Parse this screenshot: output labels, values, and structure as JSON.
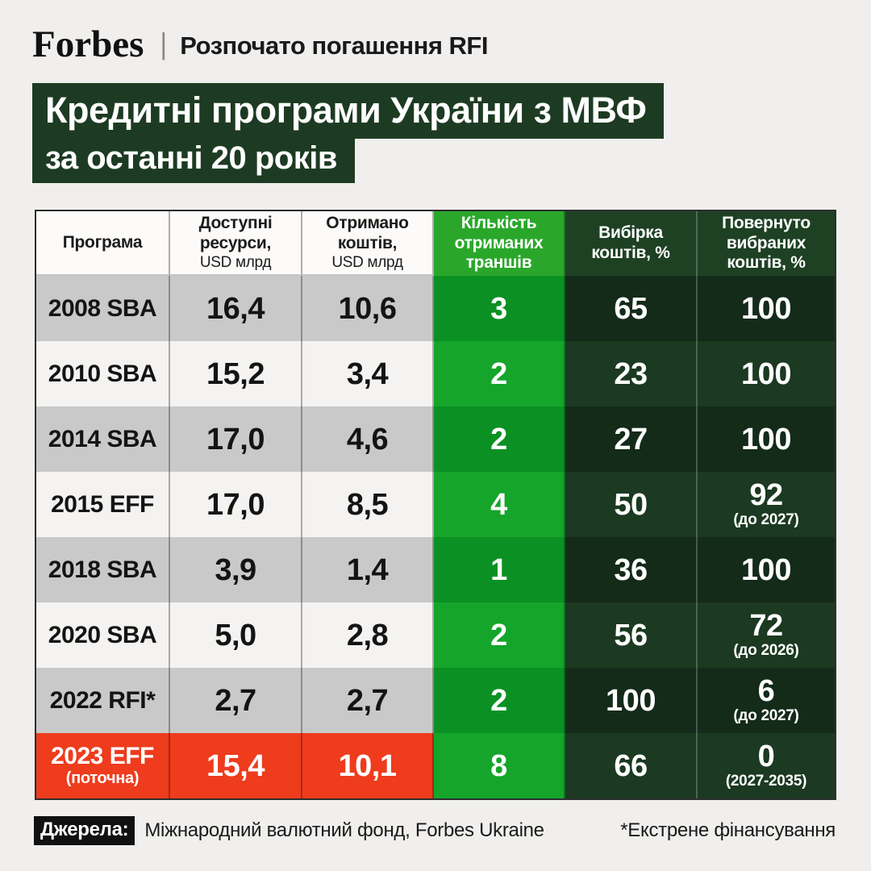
{
  "masthead": {
    "brand": "Forbes",
    "divider": "|",
    "tagline": "Розпочато погашення RFI"
  },
  "title": {
    "line1": "Кредитні програми України з МВФ",
    "line2": "за останні 20 років"
  },
  "colors": {
    "page_bg": "#f0efed",
    "title_bg": "#1d3b22",
    "bright_green_header": "#2aa72b",
    "bright_green_row_odd": "#0b9123",
    "bright_green_row_even": "#14a52a",
    "dark_green_header": "#1e4124",
    "dark_green_row_odd": "#132b18",
    "dark_green_row_even": "#1b3a21",
    "gray_row": "#c9c9c9",
    "light_row": "#f4f3f1",
    "red_row": "#ee3c1d"
  },
  "table": {
    "columns": [
      {
        "label": "Програма",
        "sub": ""
      },
      {
        "label": "Доступні\nресурси,",
        "sub": "USD млрд"
      },
      {
        "label": "Отримано\nкоштів,",
        "sub": "USD млрд"
      },
      {
        "label": "Кількість\nотриманих\nтраншів",
        "sub": ""
      },
      {
        "label": "Вибірка\nкоштів, %",
        "sub": ""
      },
      {
        "label": "Повернуто\nвибраних\nкоштів, %",
        "sub": ""
      }
    ],
    "rows": [
      {
        "program": "2008 SBA",
        "program_note": "",
        "available": "16,4",
        "received": "10,6",
        "tranches": "3",
        "disbursed": "65",
        "repaid": "100",
        "repaid_note": ""
      },
      {
        "program": "2010 SBA",
        "program_note": "",
        "available": "15,2",
        "received": "3,4",
        "tranches": "2",
        "disbursed": "23",
        "repaid": "100",
        "repaid_note": ""
      },
      {
        "program": "2014 SBA",
        "program_note": "",
        "available": "17,0",
        "received": "4,6",
        "tranches": "2",
        "disbursed": "27",
        "repaid": "100",
        "repaid_note": ""
      },
      {
        "program": "2015 EFF",
        "program_note": "",
        "available": "17,0",
        "received": "8,5",
        "tranches": "4",
        "disbursed": "50",
        "repaid": "92",
        "repaid_note": "(до 2027)"
      },
      {
        "program": "2018 SBA",
        "program_note": "",
        "available": "3,9",
        "received": "1,4",
        "tranches": "1",
        "disbursed": "36",
        "repaid": "100",
        "repaid_note": ""
      },
      {
        "program": "2020 SBA",
        "program_note": "",
        "available": "5,0",
        "received": "2,8",
        "tranches": "2",
        "disbursed": "56",
        "repaid": "72",
        "repaid_note": "(до 2026)"
      },
      {
        "program": "2022 RFI*",
        "program_note": "",
        "available": "2,7",
        "received": "2,7",
        "tranches": "2",
        "disbursed": "100",
        "repaid": "6",
        "repaid_note": "(до 2027)"
      },
      {
        "program": "2023 EFF",
        "program_note": "(поточна)",
        "available": "15,4",
        "received": "10,1",
        "tranches": "8",
        "disbursed": "66",
        "repaid": "0",
        "repaid_note": "(2027-2035)"
      }
    ]
  },
  "footer": {
    "sources_label": "Джерела:",
    "sources_text": "Міжнародний валютний фонд, Forbes Ukraine",
    "footnote": "*Екстрене фінансування"
  },
  "chart_data": {
    "type": "table",
    "title": "Кредитні програми України з МВФ за останні 20 років",
    "columns": [
      "Програма",
      "Доступні ресурси, USD млрд",
      "Отримано коштів, USD млрд",
      "Кількість отриманих траншів",
      "Вибірка коштів, %",
      "Повернуто вибраних коштів, %"
    ],
    "rows": [
      [
        "2008 SBA",
        16.4,
        10.6,
        3,
        65,
        "100"
      ],
      [
        "2010 SBA",
        15.2,
        3.4,
        2,
        23,
        "100"
      ],
      [
        "2014 SBA",
        17.0,
        4.6,
        2,
        27,
        "100"
      ],
      [
        "2015 EFF",
        17.0,
        8.5,
        4,
        50,
        "92 (до 2027)"
      ],
      [
        "2018 SBA",
        3.9,
        1.4,
        1,
        36,
        "100"
      ],
      [
        "2020 SBA",
        5.0,
        2.8,
        2,
        56,
        "72 (до 2026)"
      ],
      [
        "2022 RFI*",
        2.7,
        2.7,
        2,
        100,
        "6 (до 2027)"
      ],
      [
        "2023 EFF (поточна)",
        15.4,
        10.1,
        8,
        66,
        "0 (2027-2035)"
      ]
    ],
    "notes": [
      "*Екстрене фінансування"
    ],
    "sources": "Міжнародний валютний фонд, Forbes Ukraine"
  }
}
